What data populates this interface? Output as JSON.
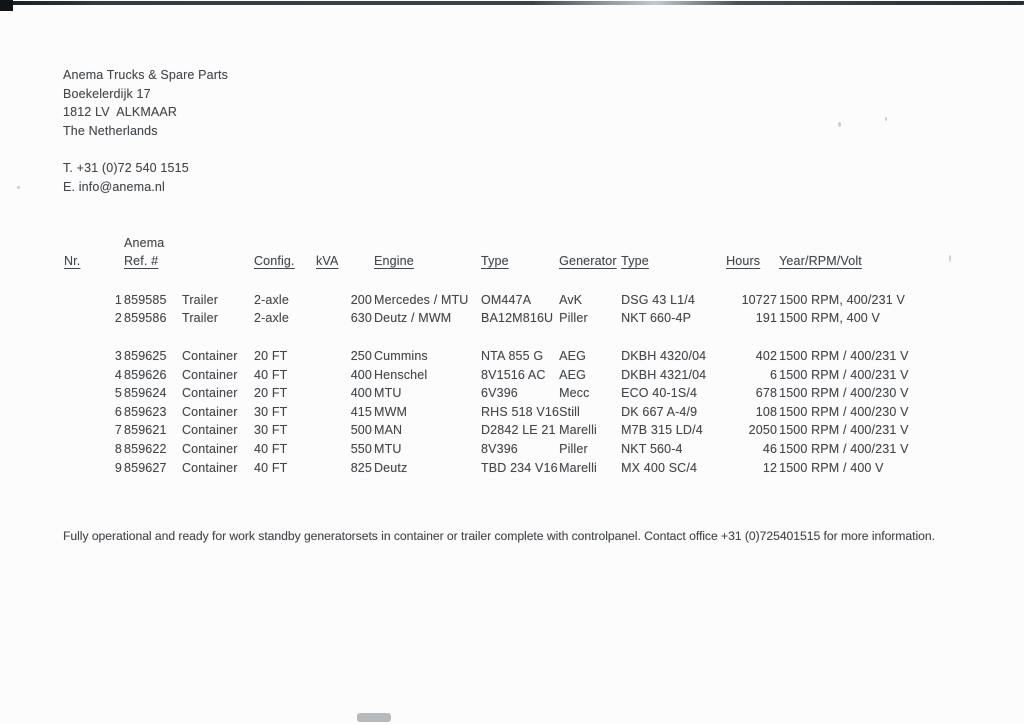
{
  "letterhead": {
    "company": "Anema Trucks & Spare Parts",
    "address_line1": "Boekelerdijk 17",
    "address_line2": "1812 LV  ALKMAAR",
    "address_line3": "The Netherlands",
    "phone": "T. +31 (0)72 540 1515",
    "email": "E. info@anema.nl"
  },
  "table": {
    "ref_top_label": "Anema",
    "headers": {
      "nr": "Nr.",
      "ref": "Ref. #",
      "body": "",
      "config": "Config.",
      "kva": "kVA",
      "engine": "Engine",
      "engine_type": "Type",
      "generator": "Generator",
      "generator_type": "Type",
      "hours": "Hours",
      "year_rpm_volt": "Year/RPM/Volt"
    },
    "rows": [
      [
        "1",
        "859585",
        "Trailer",
        "2-axle",
        "200",
        "Mercedes / MTU",
        "OM447A",
        "AvK",
        "DSG 43 L1/4",
        "10727",
        "1500 RPM, 400/231 V"
      ],
      [
        "2",
        "859586",
        "Trailer",
        "2-axle",
        "630",
        "Deutz / MWM",
        "BA12M816U",
        "Piller",
        "NKT 660-4P",
        "191",
        "1500 RPM, 400 V"
      ],
      [
        "3",
        "859625",
        "Container",
        "20 FT",
        "250",
        "Cummins",
        "NTA 855 G",
        "AEG",
        "DKBH 4320/04",
        "402",
        "1500 RPM / 400/231 V"
      ],
      [
        "4",
        "859626",
        "Container",
        "40 FT",
        "400",
        "Henschel",
        "8V1516 AC",
        "AEG",
        "DKBH 4321/04",
        "6",
        "1500 RPM / 400/231 V"
      ],
      [
        "5",
        "859624",
        "Container",
        "20 FT",
        "400",
        "MTU",
        "6V396",
        "Mecc",
        "ECO 40-1S/4",
        "678",
        "1500 RPM / 400/230 V"
      ],
      [
        "6",
        "859623",
        "Container",
        "30 FT",
        "415",
        "MWM",
        "RHS 518 V16",
        "Still",
        "DK 667 A-4/9",
        "108",
        "1500 RPM / 400/230 V"
      ],
      [
        "7",
        "859621",
        "Container",
        "30 FT",
        "500",
        "MAN",
        "D2842 LE 21",
        "Marelli",
        "M7B 315 LD/4",
        "2050",
        "1500 RPM / 400/231 V"
      ],
      [
        "8",
        "859622",
        "Container",
        "40 FT",
        "550",
        "MTU",
        "8V396",
        "Piller",
        "NKT 560-4",
        "46",
        "1500 RPM / 400/231 V"
      ],
      [
        "9",
        "859627",
        "Container",
        "40 FT",
        "825",
        "Deutz",
        "TBD 234 V16",
        "Marelli",
        "MX 400 SC/4",
        "12",
        "1500 RPM / 400 V"
      ]
    ]
  },
  "footer": {
    "note": "Fully operational and ready for work standby generatorsets in container or trailer complete with controlpanel. Contact office +31 (0)725401515 for more information."
  }
}
